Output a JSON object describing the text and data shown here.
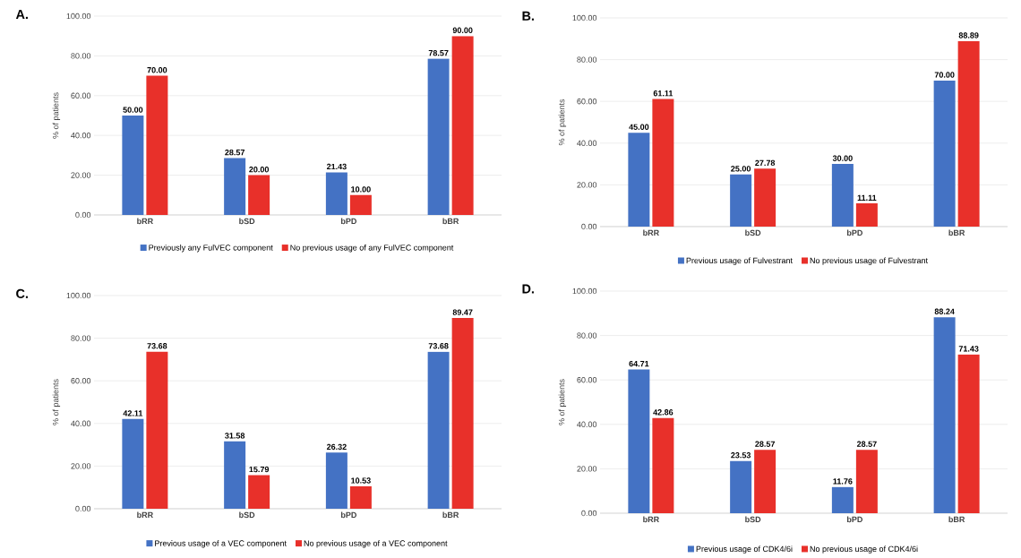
{
  "chart_data": [
    {
      "type": "bar",
      "title": "A.",
      "ylabel": "% of patients",
      "categories": [
        "bRR",
        "bSD",
        "bPD",
        "bBR"
      ],
      "ylim": [
        0,
        100
      ],
      "yticks": [
        {
          "value": 0,
          "label": "0.00"
        },
        {
          "value": 20,
          "label": "20.00"
        },
        {
          "value": 40,
          "label": "40.00"
        },
        {
          "value": 60,
          "label": "60.00"
        },
        {
          "value": 80,
          "label": "80.00"
        },
        {
          "value": 100,
          "label": "100.00"
        }
      ],
      "grid": "y",
      "legend": "bottom",
      "series": [
        {
          "name": "Previously any FulVEC component",
          "color": "#4472c4",
          "values": [
            50.0,
            28.57,
            21.43,
            78.57
          ],
          "value_labels": [
            "50.00",
            "28.57",
            "21.43",
            "78.57"
          ]
        },
        {
          "name": "No previous usage of any FulVEC component",
          "color": "#e8302a",
          "values": [
            70.0,
            20.0,
            10.0,
            90.0
          ],
          "value_labels": [
            "70.00",
            "20.00",
            "10.00",
            "90.00"
          ]
        }
      ]
    },
    {
      "type": "bar",
      "title": "B.",
      "ylabel": "% of patients",
      "categories": [
        "bRR",
        "bSD",
        "bPD",
        "bBR"
      ],
      "ylim": [
        0,
        100
      ],
      "yticks": [
        {
          "value": 0,
          "label": "0.00"
        },
        {
          "value": 20,
          "label": "20.00"
        },
        {
          "value": 40,
          "label": "40.00"
        },
        {
          "value": 60,
          "label": "60.00"
        },
        {
          "value": 80,
          "label": "80.00"
        },
        {
          "value": 100,
          "label": "100.00"
        }
      ],
      "grid": "y",
      "legend": "bottom",
      "series": [
        {
          "name": "Previous usage of Fulvestrant",
          "color": "#4472c4",
          "values": [
            45.0,
            25.0,
            30.0,
            70.0
          ],
          "value_labels": [
            "45.00",
            "25.00",
            "30.00",
            "70.00"
          ]
        },
        {
          "name": "No previous usage of Fulvestrant",
          "color": "#e8302a",
          "values": [
            61.11,
            27.78,
            11.11,
            88.89
          ],
          "value_labels": [
            "61.11",
            "27.78",
            "11.11",
            "88.89"
          ]
        }
      ]
    },
    {
      "type": "bar",
      "title": "C.",
      "ylabel": "% of patients",
      "categories": [
        "bRR",
        "bSD",
        "bPD",
        "bBR"
      ],
      "ylim": [
        0,
        100
      ],
      "yticks": [
        {
          "value": 0,
          "label": "0.00"
        },
        {
          "value": 20,
          "label": "20.00"
        },
        {
          "value": 40,
          "label": "40.00"
        },
        {
          "value": 60,
          "label": "60.00"
        },
        {
          "value": 80,
          "label": "80.00"
        },
        {
          "value": 100,
          "label": "100.00"
        }
      ],
      "grid": "y",
      "legend": "bottom",
      "series": [
        {
          "name": "Previous usage of a VEC component",
          "color": "#4472c4",
          "values": [
            42.11,
            31.58,
            26.32,
            73.68
          ],
          "value_labels": [
            "42.11",
            "31.58",
            "26.32",
            "73.68"
          ]
        },
        {
          "name": "No previous usage of a VEC component",
          "color": "#e8302a",
          "values": [
            73.68,
            15.79,
            10.53,
            89.47
          ],
          "value_labels": [
            "73.68",
            "15.79",
            "10.53",
            "89.47"
          ]
        }
      ]
    },
    {
      "type": "bar",
      "title": "D.",
      "ylabel": "% of patients",
      "categories": [
        "bRR",
        "bSD",
        "bPD",
        "bBR"
      ],
      "ylim": [
        0,
        100
      ],
      "yticks": [
        {
          "value": 0,
          "label": "0.00"
        },
        {
          "value": 20,
          "label": "20.00"
        },
        {
          "value": 40,
          "label": "40.00"
        },
        {
          "value": 60,
          "label": "60.00"
        },
        {
          "value": 80,
          "label": "80.00"
        },
        {
          "value": 100,
          "label": "100.00"
        }
      ],
      "grid": "y",
      "legend": "bottom",
      "series": [
        {
          "name": "Previous usage of CDK4/6i",
          "color": "#4472c4",
          "values": [
            64.71,
            23.53,
            11.76,
            88.24
          ],
          "value_labels": [
            "64.71",
            "23.53",
            "11.76",
            "88.24"
          ]
        },
        {
          "name": "No previous usage of CDK4/6i",
          "color": "#e8302a",
          "values": [
            42.86,
            28.57,
            28.57,
            71.43
          ],
          "value_labels": [
            "42.86",
            "28.57",
            "28.57",
            "71.43"
          ]
        }
      ]
    }
  ]
}
